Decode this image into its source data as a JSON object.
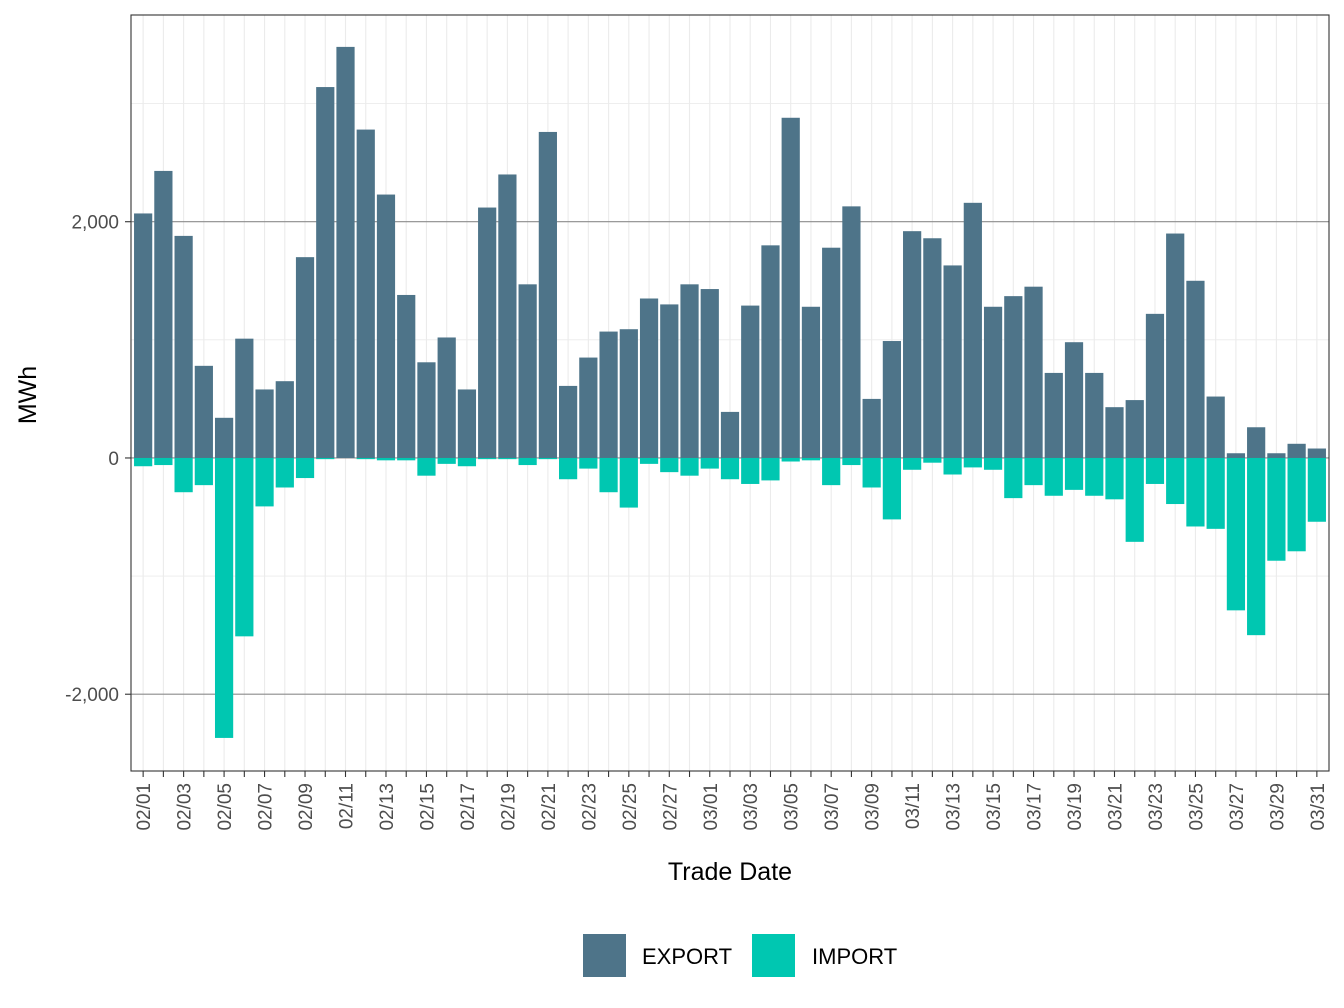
{
  "chart_data": {
    "type": "bar",
    "stacked": "diverging",
    "xlabel": "Trade Date",
    "ylabel": "MWh",
    "ylim": [
      -2650,
      3750
    ],
    "yticks": [
      {
        "value": -2000,
        "label": "-2,000"
      },
      {
        "value": 0,
        "label": "0"
      },
      {
        "value": 2000,
        "label": "2,000"
      }
    ],
    "categories": [
      "02/01",
      "02/02",
      "02/03",
      "02/04",
      "02/05",
      "02/06",
      "02/07",
      "02/08",
      "02/09",
      "02/10",
      "02/11",
      "02/12",
      "02/13",
      "02/14",
      "02/15",
      "02/16",
      "02/17",
      "02/18",
      "02/19",
      "02/20",
      "02/21",
      "02/22",
      "02/23",
      "02/24",
      "02/25",
      "02/26",
      "02/27",
      "02/28",
      "03/01",
      "03/02",
      "03/03",
      "03/04",
      "03/05",
      "03/06",
      "03/07",
      "03/08",
      "03/09",
      "03/10",
      "03/11",
      "03/12",
      "03/13",
      "03/14",
      "03/15",
      "03/16",
      "03/17",
      "03/18",
      "03/19",
      "03/20",
      "03/21",
      "03/22",
      "03/23",
      "03/24",
      "03/25",
      "03/26",
      "03/27",
      "03/28",
      "03/29",
      "03/30",
      "03/31"
    ],
    "tick_labels": [
      "02/01",
      "02/03",
      "02/05",
      "02/07",
      "02/09",
      "02/11",
      "02/13",
      "02/15",
      "02/17",
      "02/19",
      "02/21",
      "02/23",
      "02/25",
      "02/27",
      "03/01",
      "03/03",
      "03/05",
      "03/07",
      "03/09",
      "03/11",
      "03/13",
      "03/15",
      "03/17",
      "03/19",
      "03/21",
      "03/23",
      "03/25",
      "03/27",
      "03/29",
      "03/31"
    ],
    "series": [
      {
        "name": "EXPORT",
        "color": "#4e7489",
        "values": [
          2070,
          2430,
          1880,
          780,
          340,
          1010,
          580,
          650,
          1700,
          3140,
          3480,
          2780,
          2230,
          1380,
          810,
          1020,
          580,
          2120,
          2400,
          1470,
          2760,
          610,
          850,
          1070,
          1090,
          1350,
          1300,
          1470,
          1430,
          390,
          1290,
          1800,
          2880,
          1280,
          1780,
          2130,
          500,
          990,
          1920,
          1860,
          1630,
          2160,
          1280,
          1370,
          1450,
          720,
          980,
          720,
          430,
          490,
          1220,
          1900,
          1500,
          520,
          40,
          260,
          40,
          120,
          80
        ]
      },
      {
        "name": "IMPORT",
        "color": "#00c7b1",
        "values": [
          -70,
          -60,
          -290,
          -230,
          -2370,
          -1510,
          -410,
          -250,
          -170,
          -10,
          0,
          -10,
          -20,
          -20,
          -150,
          -50,
          -70,
          -10,
          -10,
          -60,
          -10,
          -180,
          -90,
          -290,
          -420,
          -50,
          -120,
          -150,
          -90,
          -180,
          -220,
          -190,
          -30,
          -20,
          -230,
          -60,
          -250,
          -520,
          -100,
          -40,
          -140,
          -80,
          -100,
          -340,
          -230,
          -320,
          -270,
          -320,
          -350,
          -710,
          -220,
          -390,
          -580,
          -600,
          -1290,
          -1500,
          -870,
          -790,
          -540
        ]
      }
    ],
    "legend": {
      "position": "bottom",
      "labels": [
        "EXPORT",
        "IMPORT"
      ]
    },
    "grid": true
  }
}
